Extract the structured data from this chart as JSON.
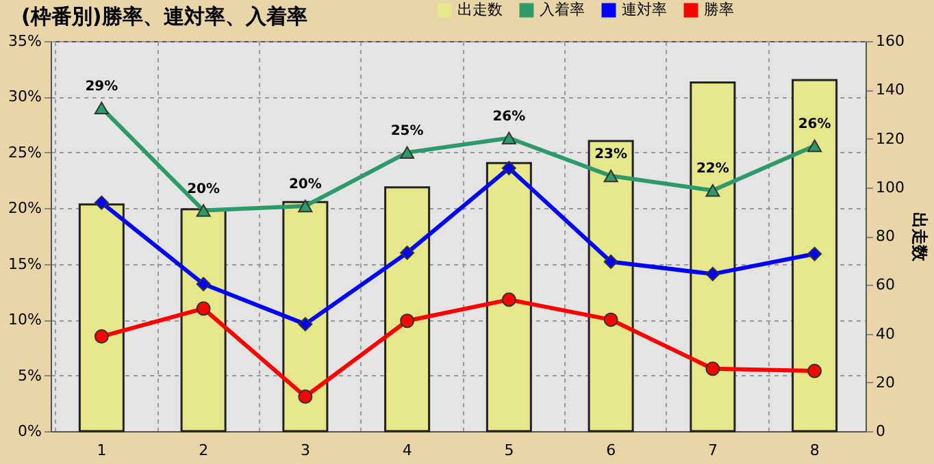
{
  "chart_data": {
    "type": "line",
    "title": "(枠番別)勝率、連対率、入着率",
    "y2label": "出走数",
    "categories": [
      "1",
      "2",
      "3",
      "4",
      "5",
      "6",
      "7",
      "8"
    ],
    "series": [
      {
        "name": "出走数",
        "type": "bar",
        "axis": "y2",
        "color": "#e6e68a",
        "values": [
          93,
          91,
          94,
          100,
          110,
          119,
          143,
          144
        ]
      },
      {
        "name": "入着率",
        "marker": "triangle",
        "color": "#2e9a6a",
        "values": [
          29.0,
          19.8,
          20.2,
          25.0,
          26.3,
          22.9,
          21.6,
          25.6
        ],
        "value_labels": [
          "29%",
          "20%",
          "20%",
          "25%",
          "26%",
          "23%",
          "22%",
          "26%"
        ]
      },
      {
        "name": "連対率",
        "marker": "diamond",
        "color": "#0000ff",
        "values": [
          20.5,
          13.2,
          9.6,
          16.0,
          23.6,
          15.2,
          14.1,
          15.9
        ]
      },
      {
        "name": "勝率",
        "marker": "circle",
        "color": "#ff0000",
        "values": [
          8.5,
          11.0,
          3.1,
          9.9,
          11.8,
          10.0,
          5.6,
          5.4
        ]
      }
    ],
    "ylim": [
      0,
      35
    ],
    "yticks": [
      {
        "value": 0,
        "label": "0%"
      },
      {
        "value": 5,
        "label": "5%"
      },
      {
        "value": 10,
        "label": "10%"
      },
      {
        "value": 15,
        "label": "15%"
      },
      {
        "value": 20,
        "label": "20%"
      },
      {
        "value": 25,
        "label": "25%"
      },
      {
        "value": 30,
        "label": "30%"
      },
      {
        "value": 35,
        "label": "35%"
      }
    ],
    "y2lim": [
      0,
      160
    ],
    "y2ticks": [
      0,
      20,
      40,
      60,
      80,
      100,
      120,
      140,
      160
    ],
    "grid": true,
    "legend": "top right"
  }
}
